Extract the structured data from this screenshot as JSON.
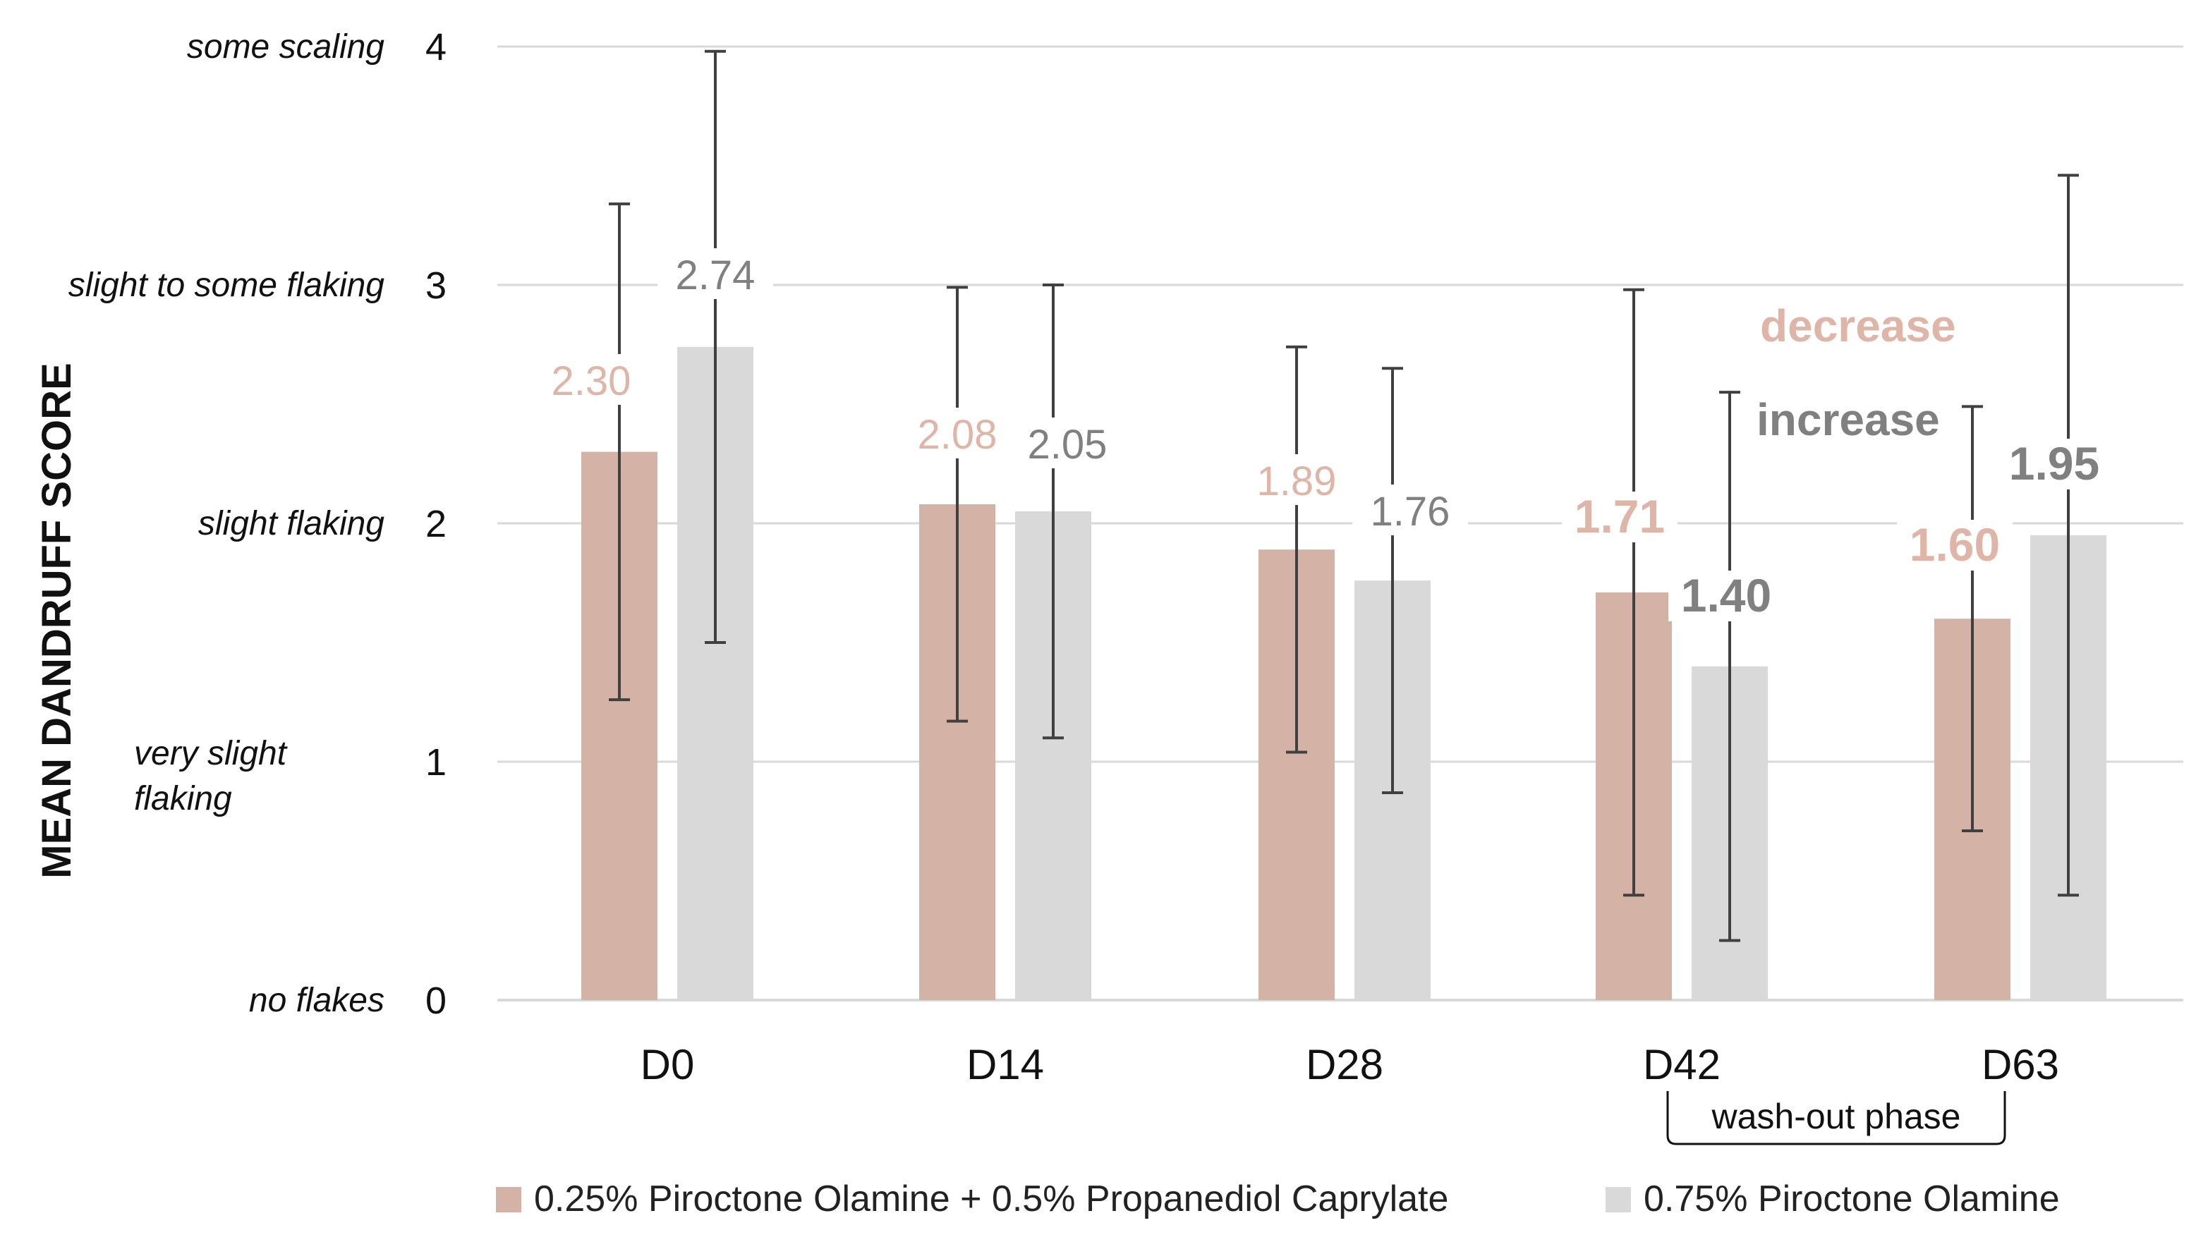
{
  "chart_data": {
    "type": "bar",
    "ylabel": "MEAN DANDRUFF SCORE",
    "xlabel": "",
    "ylim": [
      0,
      4
    ],
    "yticks": [
      {
        "value": 0,
        "label": "0",
        "description": "no flakes"
      },
      {
        "value": 1,
        "label": "1",
        "description": "very slight flaking"
      },
      {
        "value": 2,
        "label": "2",
        "description": "slight flaking"
      },
      {
        "value": 3,
        "label": "3",
        "description": "slight to some flaking"
      },
      {
        "value": 4,
        "label": "4",
        "description": "some scaling"
      }
    ],
    "categories": [
      "D0",
      "D14",
      "D28",
      "D42",
      "D63"
    ],
    "series": [
      {
        "name": "0.25% Piroctone Olamine + 0.5% Propanediol Caprylate",
        "color": "#d4b3a6",
        "label_color": "#deb5a6",
        "values": [
          2.3,
          2.08,
          1.89,
          1.71,
          1.6
        ],
        "labels": [
          "2.30",
          "2.08",
          "1.89",
          "1.71",
          "1.60"
        ],
        "error_low": [
          1.26,
          1.17,
          1.04,
          0.44,
          0.71
        ],
        "error_high": [
          3.34,
          2.99,
          2.74,
          2.98,
          2.49
        ],
        "bold_labels": [
          false,
          false,
          false,
          true,
          true
        ]
      },
      {
        "name": "0.75% Piroctone Olamine",
        "color": "#d9d9d9",
        "label_color": "#808080",
        "values": [
          2.74,
          2.05,
          1.76,
          1.4,
          1.95
        ],
        "labels": [
          "2.74",
          "2.05",
          "1.76",
          "1.40",
          "1.95"
        ],
        "error_low": [
          1.5,
          1.1,
          0.87,
          0.25,
          0.44
        ],
        "error_high": [
          3.98,
          3.0,
          2.65,
          2.55,
          3.46
        ],
        "bold_labels": [
          false,
          false,
          false,
          true,
          true
        ]
      }
    ],
    "error_color": "#404040",
    "grid_color": "#d9d9d9",
    "annotations": {
      "decrease": {
        "text": "decrease",
        "color": "#deb5a6"
      },
      "increase": {
        "text": "increase",
        "color": "#808080"
      },
      "washout": {
        "text": "wash-out phase"
      }
    },
    "legend_position": "bottom"
  }
}
